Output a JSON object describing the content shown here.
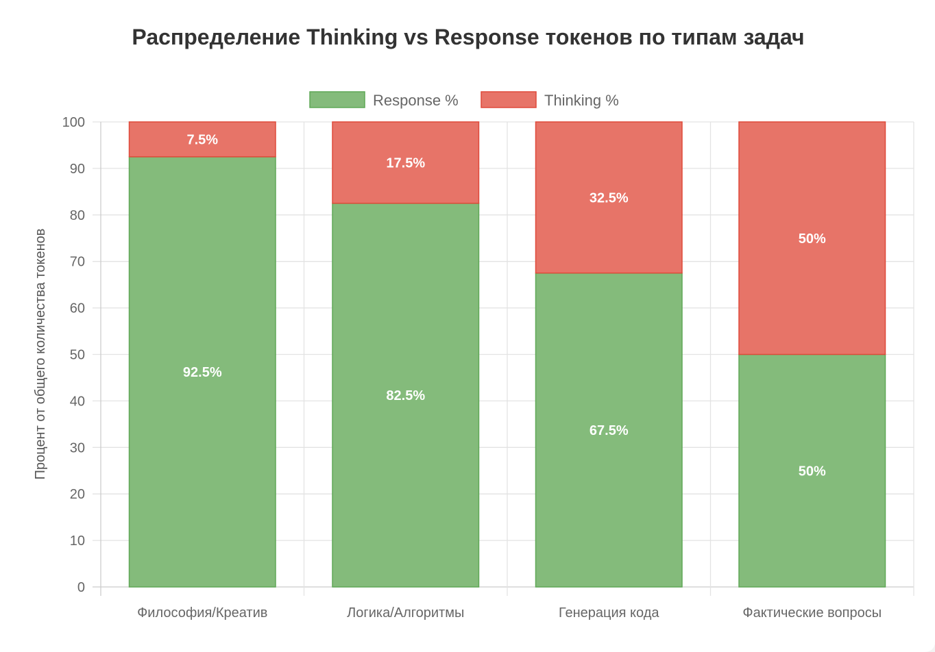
{
  "chart_data": {
    "type": "bar",
    "stacked": true,
    "title": "Распределение Thinking vs Response токенов по типам задач",
    "xlabel": "",
    "ylabel": "Процент от общего количества токенов",
    "ylim": [
      0,
      100
    ],
    "yticks": [
      0,
      10,
      20,
      30,
      40,
      50,
      60,
      70,
      80,
      90,
      100
    ],
    "grid": true,
    "legend_position": "top",
    "categories": [
      "Философия/Креатив",
      "Логика/Алгоритмы",
      "Генерация кода",
      "Фактические вопросы"
    ],
    "series": [
      {
        "name": "Response %",
        "values": [
          92.5,
          82.5,
          67.5,
          50
        ],
        "labels": [
          "92.5%",
          "82.5%",
          "67.5%",
          "50%"
        ],
        "color": "#84bb7b",
        "border": "#5fa856"
      },
      {
        "name": "Thinking %",
        "values": [
          7.5,
          17.5,
          32.5,
          50
        ],
        "labels": [
          "7.5%",
          "17.5%",
          "32.5%",
          "50%"
        ],
        "color": "#e77468",
        "border": "#df4a3a"
      }
    ]
  }
}
